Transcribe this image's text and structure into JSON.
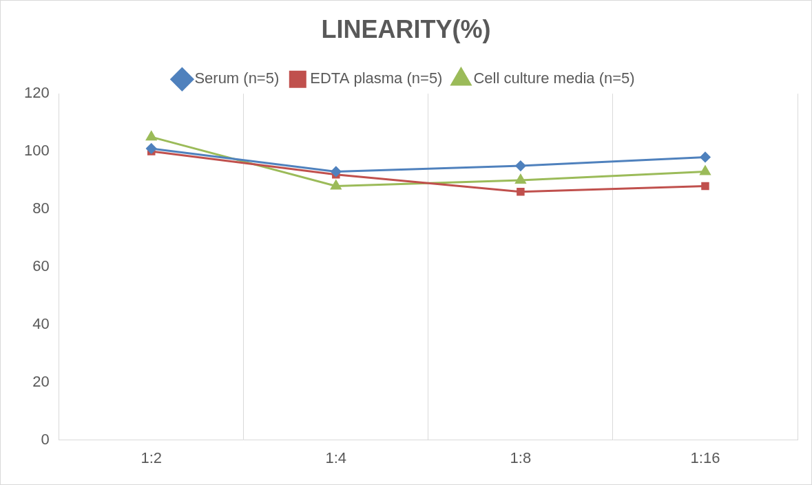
{
  "chart_data": {
    "type": "line",
    "title": "LINEARITY(%)",
    "categories": [
      "1:2",
      "1:4",
      "1:8",
      "1:16"
    ],
    "series": [
      {
        "name": "Serum (n=5)",
        "color": "#4f81bd",
        "marker": "diamond",
        "line_style": "solid",
        "values": [
          101,
          93,
          95,
          98
        ]
      },
      {
        "name": "EDTA plasma (n=5)",
        "color": "#c0504d",
        "marker": "square",
        "line_style": "solid",
        "values": [
          100,
          92,
          86,
          88
        ]
      },
      {
        "name": "Cell culture media (n=5)",
        "color": "#9bbb59",
        "marker": "triangle",
        "line_style": "solid",
        "values": [
          105,
          88,
          90,
          93
        ]
      }
    ],
    "ylim": [
      0,
      120
    ],
    "yticks": [
      0,
      20,
      40,
      60,
      80,
      100,
      120
    ],
    "grid": "x",
    "legend": "top"
  }
}
